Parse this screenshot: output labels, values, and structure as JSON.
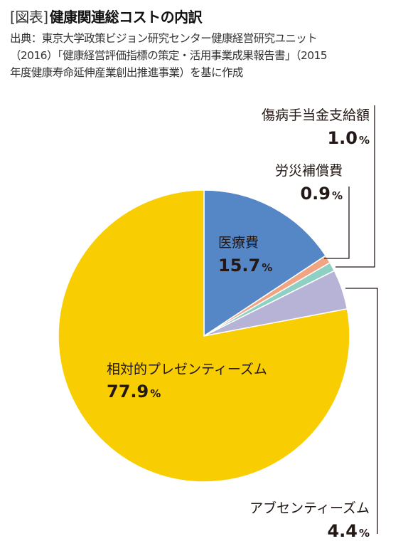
{
  "header": {
    "tag": "[図表]",
    "title": "健康関連総コストの内訳",
    "source_lines": [
      "出典：東京大学政策ビジョン研究センター健康経営研究ユニット",
      "（2016）「健康経営評価指標の策定・活用事業成果報告書」（2015",
      "年度健康寿命延伸産業創出推進事業）を基に作成"
    ]
  },
  "chart_data": {
    "type": "pie",
    "unit": "%",
    "slices": [
      {
        "label": "医療費",
        "value": 15.7,
        "display": "15.7",
        "color": "#5586c6"
      },
      {
        "label": "労災補償費",
        "value": 0.9,
        "display": "0.9",
        "color": "#f1a482"
      },
      {
        "label": "傷病手当金支給額",
        "value": 1.0,
        "display": "1.0",
        "color": "#8fd0c4"
      },
      {
        "label": "アブセンティーズム",
        "value": 4.4,
        "display": "4.4",
        "color": "#b7b3d6"
      },
      {
        "label": "相対的プレゼンティーズム",
        "value": 77.9,
        "display": "77.9",
        "color": "#f8cd02"
      }
    ]
  }
}
